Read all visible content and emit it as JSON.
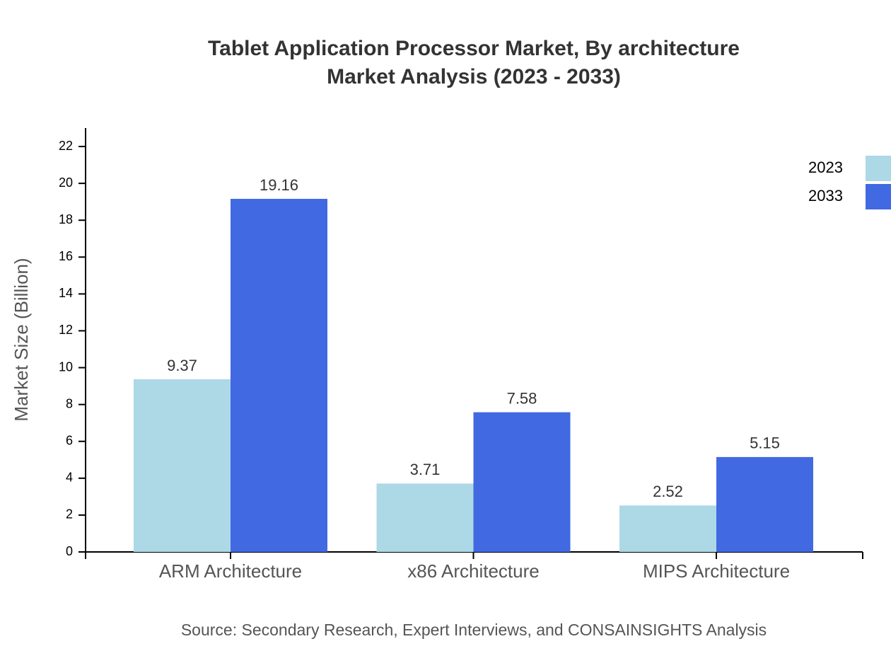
{
  "chart_data": {
    "type": "bar",
    "title": "Tablet Application Processor Market, By architecture",
    "subtitle": "Market Analysis (2023 - 2033)",
    "y_label": "Market Size (Billion)",
    "source": "Source: Secondary Research, Expert Interviews, and CONSAINSIGHTS Analysis",
    "categories": [
      "ARM Architecture",
      "x86 Architecture",
      "MIPS Architecture"
    ],
    "series": [
      {
        "name": "2023",
        "color": "#add8e6",
        "values": [
          9.37,
          3.71,
          2.52
        ]
      },
      {
        "name": "2033",
        "color": "#4169e1",
        "values": [
          19.16,
          7.58,
          5.15
        ]
      }
    ],
    "ylim": [
      0,
      23
    ],
    "yticks": [
      0,
      2,
      4,
      6,
      8,
      10,
      12,
      14,
      16,
      18,
      20,
      22
    ],
    "legend": "top-right"
  }
}
